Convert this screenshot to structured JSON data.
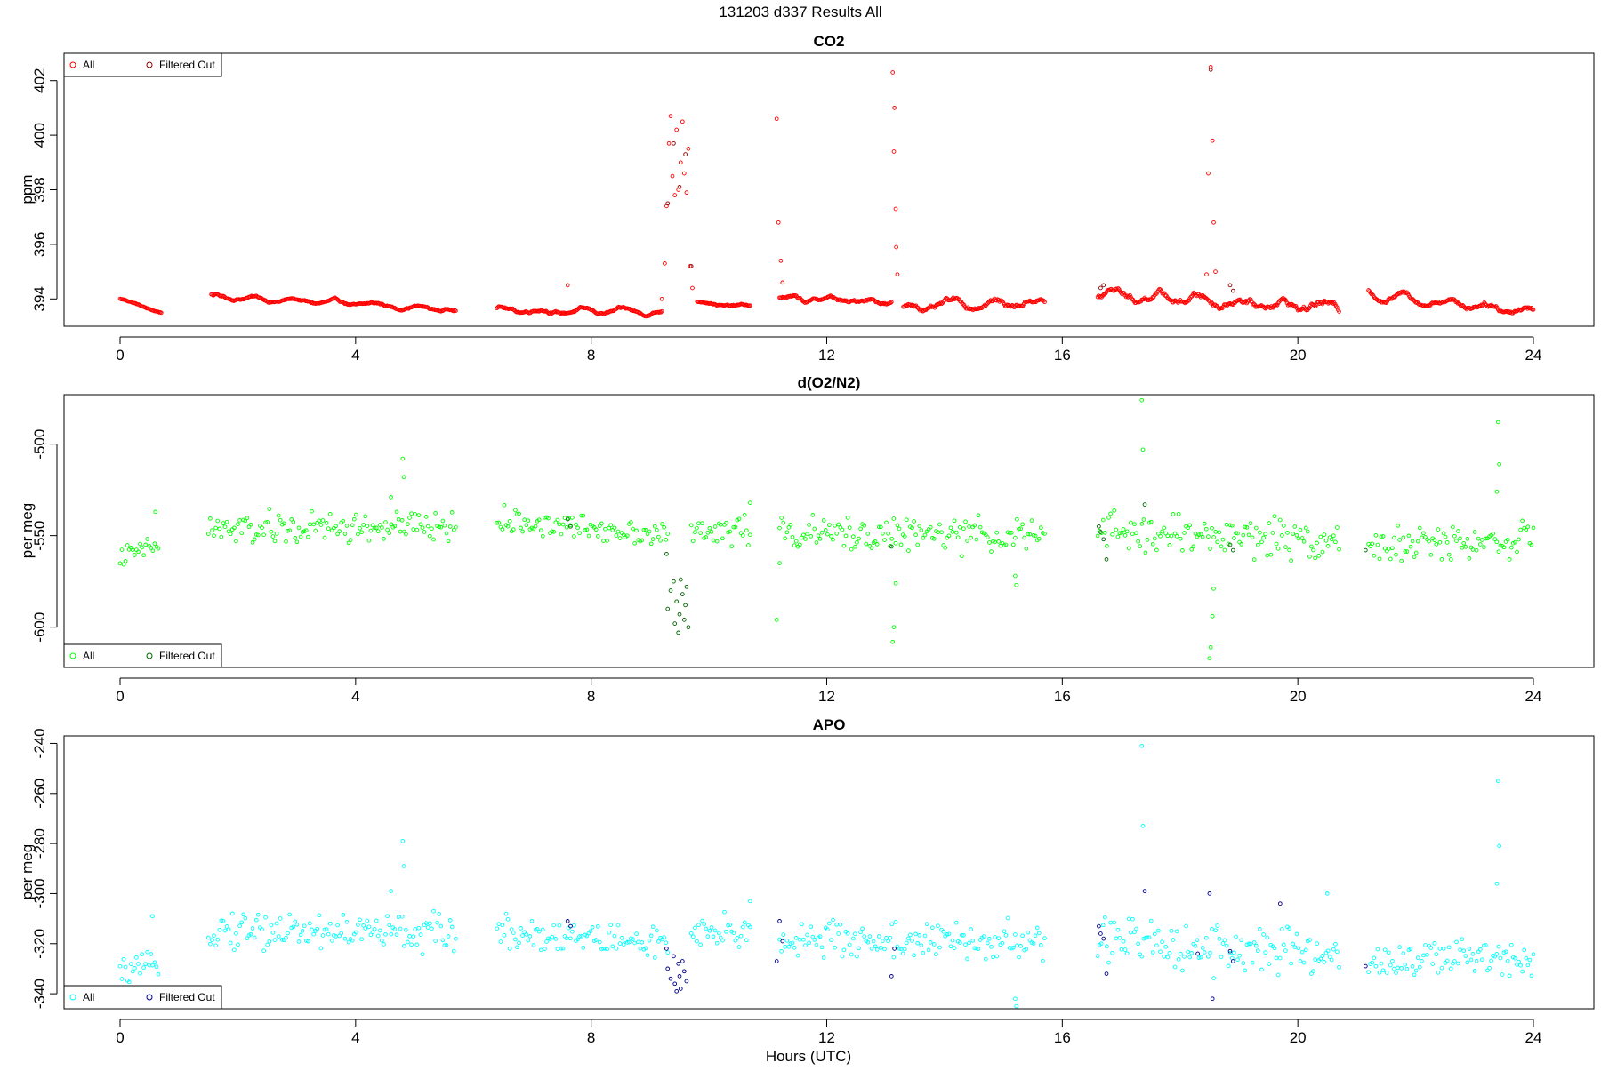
{
  "main_title": "131203   d337   Results All",
  "x_axis_title": "Hours (UTC)",
  "colors": {
    "co2_all": "#ff0000",
    "co2_filtered": "#8b0000",
    "o2_all": "#00ff00",
    "o2_filtered": "#006400",
    "apo_all": "#00ffff",
    "apo_filtered": "#00008b"
  },
  "chart_data": [
    {
      "type": "scatter",
      "title": "CO2",
      "xlabel": "",
      "ylabel": "ppm",
      "xlim": [
        0,
        24
      ],
      "ylim": [
        393,
        403
      ],
      "xticks": [
        "0",
        "4",
        "8",
        "12",
        "16",
        "20",
        "24"
      ],
      "yticks": [
        "394",
        "396",
        "398",
        "400",
        "402"
      ],
      "legend_position": "top-left",
      "grid": false,
      "series": [
        {
          "name": "All",
          "color": "#ff0000",
          "segments": [
            {
              "x0": 0.0,
              "x1": 0.7,
              "y_start": 394.0,
              "y_end": 393.5,
              "noise": 0.05
            },
            {
              "x0": 1.55,
              "x1": 5.7,
              "y_start": 394.1,
              "y_end": 393.6,
              "noise": 0.1
            },
            {
              "x0": 6.4,
              "x1": 9.2,
              "y_start": 393.6,
              "y_end": 393.5,
              "noise": 0.12
            },
            {
              "x0": 9.8,
              "x1": 10.7,
              "y_start": 393.9,
              "y_end": 393.7,
              "noise": 0.08
            },
            {
              "x0": 11.2,
              "x1": 13.1,
              "y_start": 394.0,
              "y_end": 393.9,
              "noise": 0.15
            },
            {
              "x0": 13.3,
              "x1": 15.7,
              "y_start": 393.7,
              "y_end": 393.9,
              "noise": 0.2
            },
            {
              "x0": 16.6,
              "x1": 20.7,
              "y_start": 394.2,
              "y_end": 393.7,
              "noise": 0.25
            },
            {
              "x0": 21.2,
              "x1": 24.0,
              "y_start": 394.2,
              "y_end": 393.6,
              "noise": 0.2
            }
          ],
          "spikes": [
            {
              "x": 7.6,
              "y": 394.5
            },
            {
              "x": 9.2,
              "y": 394.0
            },
            {
              "x": 9.25,
              "y": 395.3
            },
            {
              "x": 9.28,
              "y": 397.4
            },
            {
              "x": 9.32,
              "y": 399.7
            },
            {
              "x": 9.35,
              "y": 400.7
            },
            {
              "x": 9.38,
              "y": 398.5
            },
            {
              "x": 9.42,
              "y": 397.8
            },
            {
              "x": 9.45,
              "y": 400.2
            },
            {
              "x": 9.48,
              "y": 398.0
            },
            {
              "x": 9.52,
              "y": 399.0
            },
            {
              "x": 9.55,
              "y": 400.5
            },
            {
              "x": 9.58,
              "y": 398.6
            },
            {
              "x": 9.62,
              "y": 397.9
            },
            {
              "x": 9.65,
              "y": 399.5
            },
            {
              "x": 9.68,
              "y": 395.2
            },
            {
              "x": 9.72,
              "y": 394.4
            },
            {
              "x": 11.15,
              "y": 400.6
            },
            {
              "x": 11.18,
              "y": 396.8
            },
            {
              "x": 11.22,
              "y": 395.4
            },
            {
              "x": 11.25,
              "y": 394.6
            },
            {
              "x": 13.12,
              "y": 402.3
            },
            {
              "x": 13.14,
              "y": 399.4
            },
            {
              "x": 13.15,
              "y": 401.0
            },
            {
              "x": 13.17,
              "y": 397.3
            },
            {
              "x": 13.18,
              "y": 395.9
            },
            {
              "x": 13.2,
              "y": 394.9
            },
            {
              "x": 18.45,
              "y": 394.9
            },
            {
              "x": 18.48,
              "y": 398.6
            },
            {
              "x": 18.52,
              "y": 402.5
            },
            {
              "x": 18.55,
              "y": 399.8
            },
            {
              "x": 18.57,
              "y": 396.8
            },
            {
              "x": 18.6,
              "y": 395.0
            }
          ]
        },
        {
          "name": "Filtered Out",
          "color": "#8b0000",
          "points": [
            {
              "x": 9.3,
              "y": 397.5
            },
            {
              "x": 9.4,
              "y": 399.7
            },
            {
              "x": 9.5,
              "y": 398.1
            },
            {
              "x": 9.6,
              "y": 399.3
            },
            {
              "x": 9.7,
              "y": 395.2
            },
            {
              "x": 16.65,
              "y": 394.4
            },
            {
              "x": 16.7,
              "y": 394.5
            },
            {
              "x": 18.52,
              "y": 402.4
            },
            {
              "x": 18.85,
              "y": 394.5
            },
            {
              "x": 18.9,
              "y": 394.3
            }
          ]
        }
      ]
    },
    {
      "type": "scatter",
      "title": "d(O2/N2)",
      "xlabel": "",
      "ylabel": "per meg",
      "xlim": [
        0,
        24
      ],
      "ylim": [
        -622,
        -473
      ],
      "xticks": [
        "0",
        "4",
        "8",
        "12",
        "16",
        "20",
        "24"
      ],
      "yticks": [
        "-500",
        "-550",
        "-600"
      ],
      "legend_position": "bottom-left",
      "grid": false,
      "series": [
        {
          "name": "All",
          "color": "#00ff00",
          "segments": [
            {
              "x0": 0.0,
              "x1": 0.65,
              "y_start": -562,
              "y_end": -555,
              "noise": 5
            },
            {
              "x0": 1.5,
              "x1": 5.7,
              "y_start": -547,
              "y_end": -545,
              "noise": 8
            },
            {
              "x0": 6.4,
              "x1": 9.3,
              "y_start": -542,
              "y_end": -549,
              "noise": 6
            },
            {
              "x0": 9.7,
              "x1": 10.7,
              "y_start": -550,
              "y_end": -545,
              "noise": 8
            },
            {
              "x0": 11.2,
              "x1": 15.7,
              "y_start": -549,
              "y_end": -550,
              "noise": 8
            },
            {
              "x0": 16.6,
              "x1": 20.7,
              "y_start": -548,
              "y_end": -552,
              "noise": 10
            },
            {
              "x0": 21.2,
              "x1": 24.0,
              "y_start": -556,
              "y_end": -552,
              "noise": 8
            }
          ],
          "spikes": [
            {
              "x": 0.6,
              "y": -537
            },
            {
              "x": 4.6,
              "y": -529
            },
            {
              "x": 4.8,
              "y": -508
            },
            {
              "x": 4.82,
              "y": -518
            },
            {
              "x": 11.15,
              "y": -596
            },
            {
              "x": 11.2,
              "y": -565
            },
            {
              "x": 13.12,
              "y": -608
            },
            {
              "x": 13.14,
              "y": -600
            },
            {
              "x": 13.17,
              "y": -576
            },
            {
              "x": 15.2,
              "y": -572
            },
            {
              "x": 15.22,
              "y": -577
            },
            {
              "x": 17.35,
              "y": -476
            },
            {
              "x": 17.37,
              "y": -503
            },
            {
              "x": 18.5,
              "y": -617
            },
            {
              "x": 18.52,
              "y": -611
            },
            {
              "x": 18.55,
              "y": -594
            },
            {
              "x": 18.57,
              "y": -579
            },
            {
              "x": 23.4,
              "y": -488
            },
            {
              "x": 23.42,
              "y": -511
            },
            {
              "x": 23.38,
              "y": -526
            },
            {
              "x": 10.7,
              "y": -532
            }
          ]
        },
        {
          "name": "Filtered Out",
          "color": "#006400",
          "points": [
            {
              "x": 9.3,
              "y": -590
            },
            {
              "x": 9.35,
              "y": -580
            },
            {
              "x": 9.4,
              "y": -575
            },
            {
              "x": 9.42,
              "y": -598
            },
            {
              "x": 9.45,
              "y": -586
            },
            {
              "x": 9.48,
              "y": -603
            },
            {
              "x": 9.5,
              "y": -593
            },
            {
              "x": 9.52,
              "y": -574
            },
            {
              "x": 9.55,
              "y": -582
            },
            {
              "x": 9.58,
              "y": -596
            },
            {
              "x": 9.6,
              "y": -588
            },
            {
              "x": 9.62,
              "y": -578
            },
            {
              "x": 9.65,
              "y": -600
            },
            {
              "x": 9.28,
              "y": -560
            },
            {
              "x": 7.6,
              "y": -541
            },
            {
              "x": 7.65,
              "y": -545
            },
            {
              "x": 13.1,
              "y": -556
            },
            {
              "x": 16.62,
              "y": -545
            },
            {
              "x": 16.65,
              "y": -548
            },
            {
              "x": 16.7,
              "y": -552
            },
            {
              "x": 16.75,
              "y": -563
            },
            {
              "x": 17.4,
              "y": -533
            },
            {
              "x": 18.85,
              "y": -555
            },
            {
              "x": 18.9,
              "y": -558
            },
            {
              "x": 21.15,
              "y": -558
            }
          ]
        }
      ]
    },
    {
      "type": "scatter",
      "title": "APO",
      "xlabel": "Hours (UTC)",
      "ylabel": "per meg",
      "xlim": [
        0,
        24
      ],
      "ylim": [
        -346,
        -237
      ],
      "xticks": [
        "0",
        "4",
        "8",
        "12",
        "16",
        "20",
        "24"
      ],
      "yticks": [
        "-240",
        "-260",
        "-280",
        "-300",
        "-320",
        "-340"
      ],
      "legend_position": "bottom-left",
      "grid": false,
      "series": [
        {
          "name": "All",
          "color": "#00ffff",
          "segments": [
            {
              "x0": 0.0,
              "x1": 0.65,
              "y_start": -332,
              "y_end": -328,
              "noise": 4
            },
            {
              "x0": 1.5,
              "x1": 5.7,
              "y_start": -314,
              "y_end": -316,
              "noise": 7
            },
            {
              "x0": 6.4,
              "x1": 9.3,
              "y_start": -315,
              "y_end": -320,
              "noise": 6
            },
            {
              "x0": 9.7,
              "x1": 10.7,
              "y_start": -318,
              "y_end": -315,
              "noise": 7
            },
            {
              "x0": 11.2,
              "x1": 15.7,
              "y_start": -318,
              "y_end": -320,
              "noise": 7
            },
            {
              "x0": 16.6,
              "x1": 20.7,
              "y_start": -318,
              "y_end": -325,
              "noise": 9
            },
            {
              "x0": 21.2,
              "x1": 24.0,
              "y_start": -327,
              "y_end": -325,
              "noise": 7
            }
          ],
          "spikes": [
            {
              "x": 0.55,
              "y": -309
            },
            {
              "x": 4.6,
              "y": -299
            },
            {
              "x": 4.8,
              "y": -279
            },
            {
              "x": 4.82,
              "y": -289
            },
            {
              "x": 15.2,
              "y": -342
            },
            {
              "x": 15.22,
              "y": -345
            },
            {
              "x": 17.35,
              "y": -241
            },
            {
              "x": 17.37,
              "y": -273
            },
            {
              "x": 23.4,
              "y": -255
            },
            {
              "x": 23.42,
              "y": -281
            },
            {
              "x": 23.38,
              "y": -296
            },
            {
              "x": 20.5,
              "y": -300
            },
            {
              "x": 10.7,
              "y": -303
            }
          ]
        },
        {
          "name": "Filtered Out",
          "color": "#00008b",
          "points": [
            {
              "x": 9.3,
              "y": -330
            },
            {
              "x": 9.35,
              "y": -334
            },
            {
              "x": 9.4,
              "y": -325
            },
            {
              "x": 9.42,
              "y": -336
            },
            {
              "x": 9.45,
              "y": -339
            },
            {
              "x": 9.48,
              "y": -328
            },
            {
              "x": 9.5,
              "y": -333
            },
            {
              "x": 9.52,
              "y": -338
            },
            {
              "x": 9.55,
              "y": -327
            },
            {
              "x": 9.58,
              "y": -331
            },
            {
              "x": 9.62,
              "y": -335
            },
            {
              "x": 9.28,
              "y": -322
            },
            {
              "x": 7.6,
              "y": -311
            },
            {
              "x": 7.65,
              "y": -313
            },
            {
              "x": 11.15,
              "y": -327
            },
            {
              "x": 11.2,
              "y": -311
            },
            {
              "x": 11.25,
              "y": -319
            },
            {
              "x": 13.1,
              "y": -333
            },
            {
              "x": 13.15,
              "y": -322
            },
            {
              "x": 16.62,
              "y": -313
            },
            {
              "x": 16.65,
              "y": -316
            },
            {
              "x": 16.7,
              "y": -318
            },
            {
              "x": 16.75,
              "y": -332
            },
            {
              "x": 17.4,
              "y": -299
            },
            {
              "x": 18.3,
              "y": -324
            },
            {
              "x": 18.5,
              "y": -300
            },
            {
              "x": 18.55,
              "y": -342
            },
            {
              "x": 18.85,
              "y": -323
            },
            {
              "x": 18.9,
              "y": -327
            },
            {
              "x": 19.7,
              "y": -304
            },
            {
              "x": 21.15,
              "y": -329
            }
          ]
        }
      ]
    }
  ]
}
